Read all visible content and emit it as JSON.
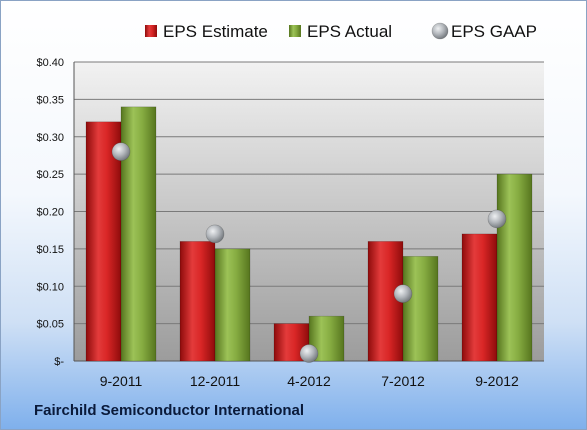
{
  "company": "Fairchild Semiconductor International",
  "legend": [
    {
      "label": "EPS Estimate",
      "shape": "square",
      "color": "#cc1f1f"
    },
    {
      "label": "EPS Actual",
      "shape": "square",
      "color": "#7fa33a"
    },
    {
      "label": "EPS GAAP",
      "shape": "circle",
      "color": "#9ea3a8"
    }
  ],
  "chart_data": {
    "type": "bar",
    "categories": [
      "9-2011",
      "12-2011",
      "4-2012",
      "7-2012",
      "9-2012"
    ],
    "series": [
      {
        "name": "EPS Estimate",
        "type": "bar",
        "color": "#cc1f1f",
        "values": [
          0.32,
          0.16,
          0.05,
          0.16,
          0.17
        ]
      },
      {
        "name": "EPS Actual",
        "type": "bar",
        "color": "#7fa33a",
        "values": [
          0.34,
          0.15,
          0.06,
          0.14,
          0.25
        ]
      },
      {
        "name": "EPS GAAP",
        "type": "scatter",
        "color": "#9ea3a8",
        "values": [
          0.28,
          0.17,
          0.01,
          0.09,
          0.19
        ]
      }
    ],
    "yticks": [
      "$-",
      "$0.05",
      "$0.10",
      "$0.15",
      "$0.20",
      "$0.25",
      "$0.30",
      "$0.35",
      "$0.40"
    ],
    "ylim": [
      0,
      0.4
    ],
    "grid": true,
    "legend_position": "top"
  }
}
